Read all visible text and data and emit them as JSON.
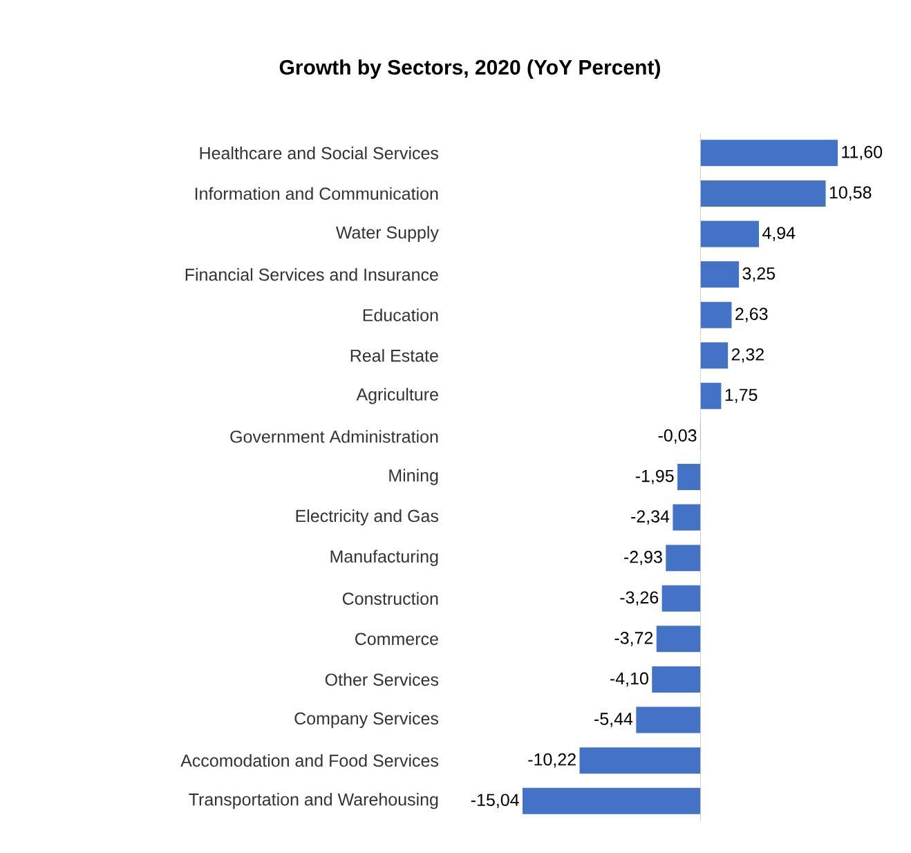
{
  "chart_data": {
    "type": "bar",
    "orientation": "horizontal",
    "title": "Growth by Sectors, 2020 (YoY Percent)",
    "categories": [
      "Healthcare and Social Services",
      "Information and Communication",
      "Water Supply",
      "Financial Services and Insurance",
      "Education",
      "Real Estate",
      "Agriculture",
      "Government Administration",
      "Mining",
      "Electricity and Gas",
      "Manufacturing",
      "Construction",
      "Commerce",
      "Other Services",
      "Company Services",
      "Accomodation and Food Services",
      "Transportation and Warehousing"
    ],
    "values": [
      11.6,
      10.58,
      4.94,
      3.25,
      2.63,
      2.32,
      1.75,
      -0.03,
      -1.95,
      -2.34,
      -2.93,
      -3.26,
      -3.72,
      -4.1,
      -5.44,
      -10.22,
      -15.04
    ],
    "value_labels": [
      "11,60",
      "10,58",
      "4,94",
      "3,25",
      "2,63",
      "2,32",
      "1,75",
      "-0,03",
      "-1,95",
      "-2,34",
      "-2,93",
      "-3,26",
      "-3,72",
      "-4,10",
      "-5,44",
      "-10,22",
      "-15,04"
    ],
    "color": "#4472c4"
  }
}
